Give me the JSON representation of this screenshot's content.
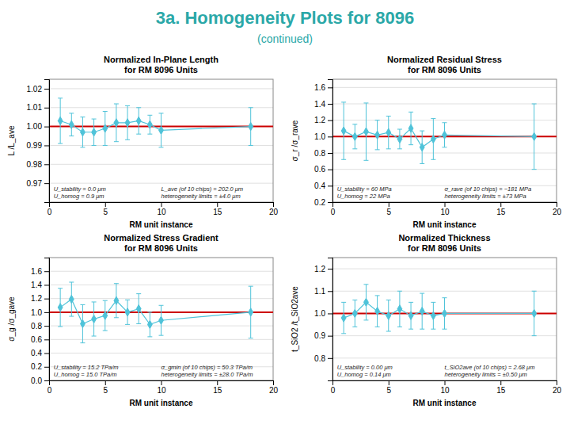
{
  "title": "3a. Homogeneity Plots for 8096",
  "subtitle": "(continued)",
  "color": "#2ba8a8",
  "chart_data": [
    {
      "type": "line",
      "title": "Normalized In-Plane Length\nfor RM 8096 Units",
      "xlabel": "RM unit instance",
      "ylabel": "L /L_ave",
      "xlim": [
        0,
        20
      ],
      "xticks": [
        0,
        5,
        10,
        15,
        20
      ],
      "ylim": [
        0.96,
        1.025
      ],
      "yticks": [
        0.97,
        0.98,
        0.99,
        {
          "value": 1.0,
          "label": "1.00"
        },
        1.01,
        1.02
      ],
      "grid": "y",
      "color": "#4fc3d9",
      "marker": "diamond",
      "line_style": "solid",
      "x": [
        1,
        2,
        3,
        4,
        5,
        6,
        7,
        8,
        9,
        10,
        18
      ],
      "values": [
        1.003,
        1.001,
        0.997,
        0.997,
        0.999,
        1.002,
        1.002,
        1.003,
        1.001,
        0.998,
        1.0
      ],
      "errors": [
        0.012,
        0.006,
        0.008,
        0.007,
        0.009,
        0.01,
        0.009,
        0.007,
        0.005,
        0.009,
        0.01
      ],
      "reference_lines": [
        {
          "value": 1.0,
          "color": "#cc0000"
        }
      ],
      "annotations": [
        "U_stability = 0.0 μm\nU_homog = 0.9 μm",
        "L_ave (of 10 chips) = 202.0 μm\nheterogeneity limits = ±4.0 μm"
      ]
    },
    {
      "type": "line",
      "title": "Normalized Residual Stress\nfor RM 8096 Units",
      "xlabel": "RM unit instance",
      "ylabel": "σ_r /σ_rave",
      "xlim": [
        0,
        20
      ],
      "xticks": [
        0,
        5,
        10,
        15,
        20
      ],
      "ylim": [
        0.2,
        1.7
      ],
      "yticks": [
        0.2,
        0.4,
        0.6,
        0.8,
        {
          "value": 1.0,
          "label": "1.0"
        },
        1.2,
        1.4,
        1.6
      ],
      "grid": "y",
      "color": "#4fc3d9",
      "marker": "diamond",
      "line_style": "solid",
      "x": [
        1,
        2,
        3,
        4,
        5,
        6,
        7,
        8,
        9,
        10,
        18
      ],
      "values": [
        1.07,
        1.0,
        1.06,
        1.02,
        1.05,
        0.97,
        1.1,
        0.87,
        0.97,
        1.02,
        1.0
      ],
      "errors": [
        0.35,
        0.15,
        0.35,
        0.18,
        0.2,
        0.12,
        0.2,
        0.2,
        0.25,
        0.15,
        0.4
      ],
      "reference_lines": [
        {
          "value": 1.0,
          "color": "#cc0000"
        }
      ],
      "annotations": [
        "U_stability = 60 MPa\nU_homog = 22 MPa",
        "σ_rave (of 10 chips) = −181 MPa\nheterogeneity limits = ±73 MPa"
      ]
    },
    {
      "type": "line",
      "title": "Normalized Stress Gradient\nfor RM 8096 Units",
      "xlabel": "RM unit instance",
      "ylabel": "σ_g /σ_gave",
      "xlim": [
        0,
        20
      ],
      "xticks": [
        0,
        5,
        10,
        15,
        20
      ],
      "ylim": [
        0.0,
        1.8
      ],
      "yticks": [
        {
          "value": 0.0,
          "label": "0.0"
        },
        0.2,
        0.4,
        0.6,
        0.8,
        {
          "value": 1.0,
          "label": "1.0"
        },
        1.2,
        1.4,
        1.6
      ],
      "grid": "y",
      "color": "#4fc3d9",
      "marker": "diamond",
      "line_style": "solid",
      "x": [
        1,
        2,
        3,
        4,
        5,
        6,
        7,
        8,
        9,
        10,
        18
      ],
      "values": [
        1.07,
        1.19,
        0.83,
        0.9,
        0.95,
        1.17,
        1.0,
        1.05,
        0.82,
        0.88,
        1.0
      ],
      "errors": [
        0.28,
        0.25,
        0.28,
        0.25,
        0.22,
        0.25,
        0.18,
        0.22,
        0.18,
        0.22,
        0.38
      ],
      "reference_lines": [
        {
          "value": 1.0,
          "color": "#cc0000"
        }
      ],
      "annotations": [
        "U_stability = 15.2 TPa/m\nU_homog = 15.0 TPa/m",
        "σ_gmin (of 10 chips) = 50.3 TPa/m\nheterogeneity limits = ±28.0 TPa/m"
      ]
    },
    {
      "type": "line",
      "title": "Normalized Thickness\nfor RM 8096 Units",
      "xlabel": "RM unit instance",
      "ylabel": "t_SiO2 /t_SiO2ave",
      "xlim": [
        0,
        20
      ],
      "xticks": [
        0,
        5,
        10,
        15,
        20
      ],
      "ylim": [
        0.7,
        1.25
      ],
      "yticks": [
        0.8,
        0.9,
        {
          "value": 1.0,
          "label": "1.0"
        },
        1.1,
        1.2
      ],
      "grid": "y",
      "color": "#4fc3d9",
      "marker": "diamond",
      "line_style": "solid",
      "x": [
        1,
        2,
        3,
        4,
        5,
        6,
        7,
        8,
        9,
        10,
        18
      ],
      "values": [
        0.98,
        1.0,
        1.05,
        1.01,
        0.99,
        1.02,
        0.99,
        1.01,
        0.99,
        1.0,
        1.0
      ],
      "errors": [
        0.07,
        0.06,
        0.08,
        0.07,
        0.07,
        0.08,
        0.06,
        0.08,
        0.06,
        0.07,
        0.1
      ],
      "reference_lines": [
        {
          "value": 1.0,
          "color": "#cc0000"
        }
      ],
      "annotations": [
        "U_stability = 0.00 μm\nU_homog = 0.14 μm",
        "t_SiO2ave (of 10 chips) = 2.68 μm\nheterogeneity limits = ±0.50 μm"
      ]
    }
  ]
}
